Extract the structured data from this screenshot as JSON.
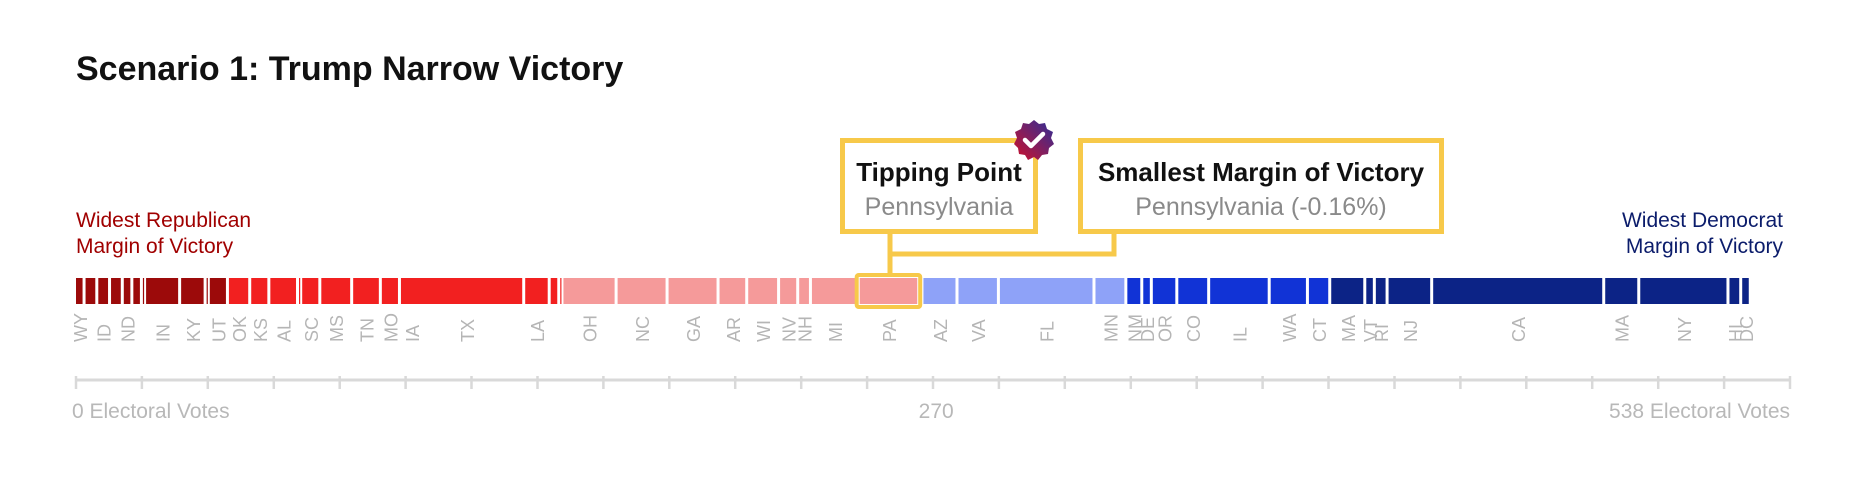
{
  "title": "Scenario 1: Trump Narrow Victory",
  "rep_label": {
    "line1": "Widest Republican",
    "line2": "Margin of Victory"
  },
  "dem_label": {
    "line1": "Widest Democrat",
    "line2": "Margin of Victory"
  },
  "tipping_point": {
    "title": "Tipping Point",
    "state": "Pennsylvania"
  },
  "smallest_margin": {
    "title": "Smallest Margin of Victory",
    "state": "Pennsylvania (-0.16%)"
  },
  "colors": {
    "rep_strong": "#9c0a0a",
    "rep_likely": "#f22020",
    "rep_lean": "#f59a9a",
    "dem_lean": "#8ea2f8",
    "dem_likely": "#1133d6",
    "dem_strong": "#0c2386",
    "highlight": "#f7c94a",
    "axis": "#d9d9d9"
  },
  "chart_data": {
    "type": "bar",
    "orientation": "stacked-horizontal",
    "x_unit": "Electoral Votes",
    "xlim": [
      0,
      538
    ],
    "axis_labels": {
      "left": "0 Electoral Votes",
      "center": "270",
      "right": "538 Electoral Votes"
    },
    "tipping_point_state": "PA",
    "states": [
      {
        "code": "WY",
        "ev": 3,
        "tier": "rep_strong",
        "label": "WY"
      },
      {
        "code": "WV",
        "ev": 4,
        "tier": "rep_strong",
        "label": ""
      },
      {
        "code": "ID",
        "ev": 4,
        "tier": "rep_strong",
        "label": "ID"
      },
      {
        "code": "OK1",
        "ev": 4,
        "tier": "rep_strong",
        "label": ""
      },
      {
        "code": "ND",
        "ev": 3,
        "tier": "rep_strong",
        "label": "ND"
      },
      {
        "code": "SD",
        "ev": 3,
        "tier": "rep_strong",
        "label": ""
      },
      {
        "code": "NE3",
        "ev": 1,
        "tier": "rep_strong",
        "label": ""
      },
      {
        "code": "IN",
        "ev": 11,
        "tier": "rep_strong",
        "label": "IN"
      },
      {
        "code": "KY",
        "ev": 8,
        "tier": "rep_strong",
        "label": "KY"
      },
      {
        "code": "AR1",
        "ev": 1,
        "tier": "rep_strong",
        "label": ""
      },
      {
        "code": "UT",
        "ev": 6,
        "tier": "rep_strong",
        "label": "UT"
      },
      {
        "code": "OK",
        "ev": 7,
        "tier": "rep_likely",
        "label": "OK"
      },
      {
        "code": "KS",
        "ev": 6,
        "tier": "rep_likely",
        "label": "KS"
      },
      {
        "code": "AL",
        "ev": 9,
        "tier": "rep_likely",
        "label": "AL"
      },
      {
        "code": "MT",
        "ev": 1,
        "tier": "rep_likely",
        "label": ""
      },
      {
        "code": "SC",
        "ev": 6,
        "tier": "rep_likely",
        "label": "SC"
      },
      {
        "code": "MS",
        "ev": 10,
        "tier": "rep_likely",
        "label": "MS"
      },
      {
        "code": "TN",
        "ev": 9,
        "tier": "rep_likely",
        "label": "TN"
      },
      {
        "code": "MO",
        "ev": 6,
        "tier": "rep_likely",
        "label": "MO"
      },
      {
        "code": "IA",
        "ev": 39,
        "tier": "rep_likely",
        "label": "IA"
      },
      {
        "code": "TX",
        "ev": 0,
        "tier": "rep_likely",
        "label": "TX"
      },
      {
        "code": "LA",
        "ev": 8,
        "tier": "rep_likely",
        "label": "LA"
      },
      {
        "code": "AK",
        "ev": 3,
        "tier": "rep_likely",
        "label": ""
      },
      {
        "code": "ME2",
        "ev": 1,
        "tier": "rep_likely",
        "label": ""
      },
      {
        "code": "OH",
        "ev": 17,
        "tier": "rep_lean",
        "label": "OH"
      },
      {
        "code": "NC",
        "ev": 16,
        "tier": "rep_lean",
        "label": "NC"
      },
      {
        "code": "GA",
        "ev": 16,
        "tier": "rep_lean",
        "label": "GA"
      },
      {
        "code": "AR",
        "ev": 9,
        "tier": "rep_lean",
        "label": "AR"
      },
      {
        "code": "WI",
        "ev": 10,
        "tier": "rep_lean",
        "label": "WI"
      },
      {
        "code": "NV",
        "ev": 6,
        "tier": "rep_lean",
        "label": "NV"
      },
      {
        "code": "NH",
        "ev": 4,
        "tier": "rep_lean",
        "label": "NH"
      },
      {
        "code": "MI",
        "ev": 15,
        "tier": "rep_lean",
        "label": "MI"
      },
      {
        "code": "PA",
        "ev": 19,
        "tier": "rep_lean",
        "label": "PA"
      },
      {
        "code": "NE2",
        "ev": 1,
        "tier": "dem_lean",
        "label": ""
      },
      {
        "code": "AZ",
        "ev": 11,
        "tier": "dem_lean",
        "label": "AZ"
      },
      {
        "code": "VA",
        "ev": 13,
        "tier": "dem_lean",
        "label": "VA"
      },
      {
        "code": "FL",
        "ev": 30,
        "tier": "dem_lean",
        "label": "FL"
      },
      {
        "code": "MN",
        "ev": 10,
        "tier": "dem_lean",
        "label": "MN"
      },
      {
        "code": "NM",
        "ev": 5,
        "tier": "dem_likely",
        "label": "NM"
      },
      {
        "code": "DE",
        "ev": 3,
        "tier": "dem_likely",
        "label": "DE"
      },
      {
        "code": "OR",
        "ev": 8,
        "tier": "dem_likely",
        "label": "OR"
      },
      {
        "code": "CO",
        "ev": 10,
        "tier": "dem_likely",
        "label": "CO"
      },
      {
        "code": "IL",
        "ev": 19,
        "tier": "dem_likely",
        "label": "IL"
      },
      {
        "code": "WA",
        "ev": 12,
        "tier": "dem_likely",
        "label": "WA"
      },
      {
        "code": "CT",
        "ev": 7,
        "tier": "dem_likely",
        "label": "CT"
      },
      {
        "code": "MA1",
        "ev": 11,
        "tier": "dem_strong",
        "label": "MA"
      },
      {
        "code": "VT",
        "ev": 3,
        "tier": "dem_strong",
        "label": "VT"
      },
      {
        "code": "RI",
        "ev": 4,
        "tier": "dem_strong",
        "label": "RI"
      },
      {
        "code": "NJ",
        "ev": 14,
        "tier": "dem_strong",
        "label": "NJ"
      },
      {
        "code": "CA",
        "ev": 54,
        "tier": "dem_strong",
        "label": "CA"
      },
      {
        "code": "MA",
        "ev": 11,
        "tier": "dem_strong",
        "label": "MA"
      },
      {
        "code": "NY",
        "ev": 28,
        "tier": "dem_strong",
        "label": "NY"
      },
      {
        "code": "HI",
        "ev": 4,
        "tier": "dem_strong",
        "label": "HI"
      },
      {
        "code": "DC",
        "ev": 3,
        "tier": "dem_strong",
        "label": "DC"
      }
    ]
  }
}
